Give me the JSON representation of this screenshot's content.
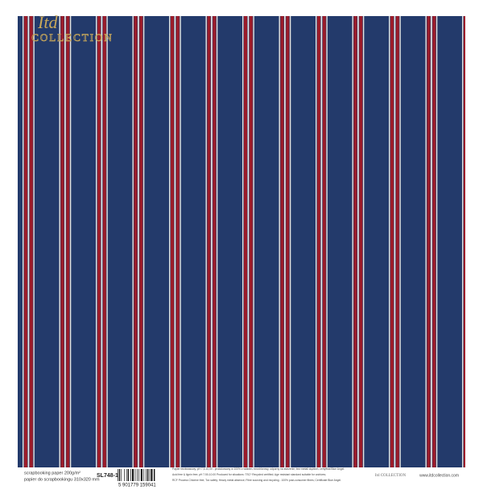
{
  "logo": {
    "script": "Itd",
    "word": "COLLECTION"
  },
  "footer": {
    "paper_en": "scrapbooking paper 200g/m²",
    "paper_pl": "papier do scrapbookingu 310x320 mm",
    "code": "SL748-1",
    "barcode": "5 901779 159041",
    "info_lines": [
      "Papier bezkwasowy, pH 7,5-10,00 - produkowany w 100% z włókien, bezchlorowy, odporny na starzenie, bez metali ciężkich, certyfikat Blue Angel.",
      "Acid free & lignin free; pH 7.50-10.00 Produced for situations: TSC* Recycled certified; Age resistant standard suitable for archives;",
      "RCF Process Chlorine free; Tox safety; Heavy metal absence; Fibre sourcing and recycling - 100% post-consumer fibres; Certificate Blue Angel."
    ],
    "logo_small": "Itd COLLECTION",
    "website": "www.itdcollection.com"
  }
}
